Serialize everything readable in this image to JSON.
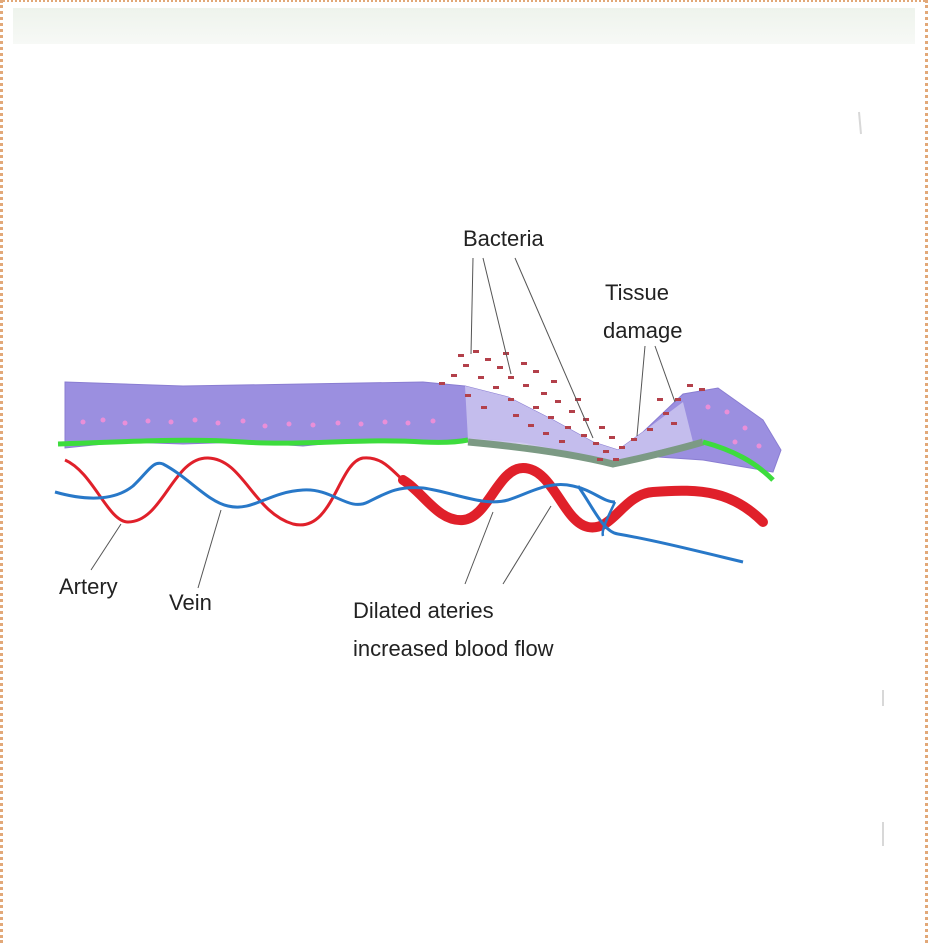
{
  "labels": {
    "bacteria": "Bacteria",
    "tissue_line1": "Tissue",
    "tissue_line2": "damage",
    "artery": "Artery",
    "vein": "Vein",
    "dilated_line1": "Dilated ateries",
    "dilated_line2": "increased blood flow"
  },
  "colors": {
    "tissue": "#9b8fe0",
    "damaged_tissue": "#c9c2ee",
    "membrane": "#3ddc3d",
    "damaged_membrane": "#7c9a84",
    "artery": "#e0202a",
    "vein": "#2878c8",
    "bacteria": "#b3404a",
    "cell_dot": "#e98fd8",
    "leader": "#555555"
  }
}
